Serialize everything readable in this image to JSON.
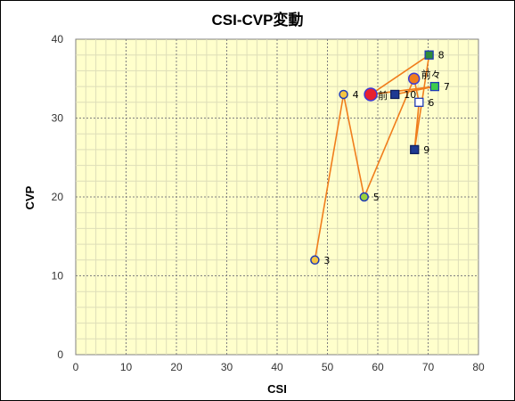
{
  "chart_data": {
    "type": "scatter",
    "title": "CSI-CVP変動",
    "xlabel": "CSI",
    "ylabel": "CVP",
    "xlim": [
      0,
      80
    ],
    "ylim": [
      0,
      40
    ],
    "x_ticks": [
      "0",
      "10",
      "20",
      "30",
      "40",
      "50",
      "60",
      "70",
      "80"
    ],
    "y_ticks": [
      "0",
      "10",
      "20",
      "30",
      "40"
    ],
    "grid": true,
    "legend": "none",
    "colors": {
      "plot_bg": "#ffffcc",
      "line": "#f07d1c",
      "grid_major": "#7f7f7f",
      "grid_minor": "#dedeb8"
    },
    "path_order": [
      "3",
      "4",
      "5",
      "前々",
      "6",
      "9",
      "8",
      "前",
      "7",
      "10"
    ],
    "points": [
      {
        "label": "3",
        "x": 47.5,
        "y": 12,
        "marker": "circle",
        "fill": "#f5c542",
        "stroke": "#1f3ab5",
        "size": "small"
      },
      {
        "label": "4",
        "x": 53.2,
        "y": 33,
        "marker": "circle",
        "fill": "#f5c542",
        "stroke": "#1f3ab5",
        "size": "small"
      },
      {
        "label": "5",
        "x": 57.3,
        "y": 20,
        "marker": "circle",
        "fill": "#9ad23c",
        "stroke": "#1f3ab5",
        "size": "small"
      },
      {
        "label": "6",
        "x": 68.2,
        "y": 32,
        "marker": "square",
        "fill": "#ffffff",
        "stroke": "#1f3ab5",
        "size": "small"
      },
      {
        "label": "7",
        "x": 71.3,
        "y": 34,
        "marker": "square",
        "fill": "#3ccc4c",
        "stroke": "#1f3ab5",
        "size": "small"
      },
      {
        "label": "8",
        "x": 70.2,
        "y": 38,
        "marker": "square",
        "fill": "#2e8b3a",
        "stroke": "#1f3ab5",
        "size": "small"
      },
      {
        "label": "9",
        "x": 67.3,
        "y": 26,
        "marker": "square",
        "fill": "#1f3a93",
        "stroke": "#0f1f5f",
        "size": "small"
      },
      {
        "label": "10",
        "x": 63.4,
        "y": 33,
        "marker": "square",
        "fill": "#1f3a93",
        "stroke": "#0f1f5f",
        "size": "small"
      },
      {
        "label": "前々",
        "x": 67.2,
        "y": 35,
        "marker": "circle",
        "fill": "#f07d1c",
        "stroke": "#3b3bd6",
        "size": "medium"
      },
      {
        "label": "前",
        "x": 58.6,
        "y": 33,
        "marker": "circle",
        "fill": "#e8212f",
        "stroke": "#3b3bd6",
        "size": "large"
      }
    ]
  }
}
